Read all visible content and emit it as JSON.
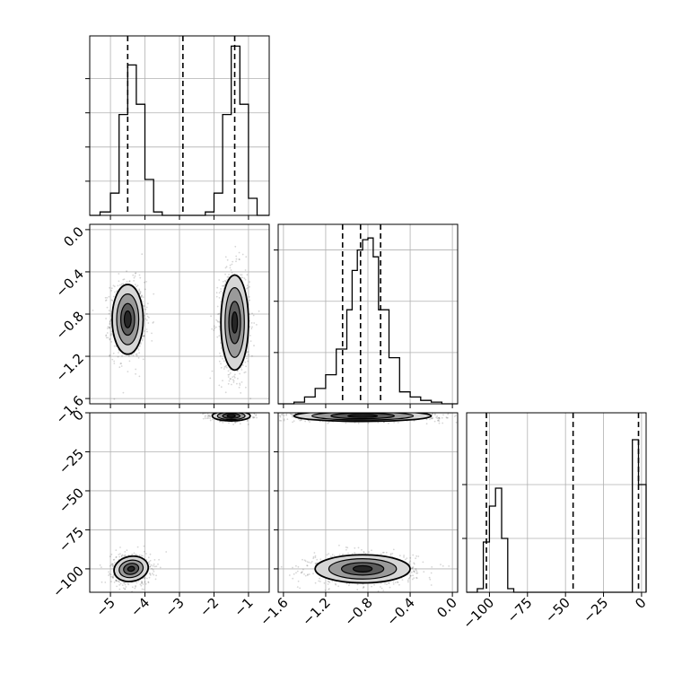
{
  "chart_data": {
    "type": "corner",
    "title": "",
    "grid": true,
    "style": {
      "frame_color": "#000000",
      "grid_color": "#b0b0b0",
      "hist_color": "#000000",
      "sample_color": "#000000",
      "contour_fill": [
        "#d6d6d6",
        "#9a9a9a",
        "#5c5c5c",
        "#262626"
      ]
    },
    "parameters": [
      {
        "name": "p0",
        "xlabel": "",
        "xlim": [
          -5.6,
          -0.4
        ],
        "ylim": [
          -1.65,
          0.05
        ],
        "ticks": [
          -5,
          -4,
          -3,
          -2,
          -1
        ],
        "tick_labels": [
          "−5",
          "−4",
          "−3",
          "−2",
          "−1"
        ],
        "ytick_labels": [
          "−1.6",
          "−1.2",
          "−0.8",
          "−0.4",
          "0.0"
        ],
        "yticks": [
          -1.6,
          -1.2,
          -0.8,
          -0.4,
          0.0
        ],
        "quantiles": [
          -4.5,
          -2.9,
          -1.4
        ],
        "hist_edges": [
          -5.6,
          -5.3,
          -5.0,
          -4.75,
          -4.5,
          -4.25,
          -4.0,
          -3.75,
          -3.5,
          -3.25,
          -3.0,
          -2.75,
          -2.5,
          -2.25,
          -2.0,
          -1.75,
          -1.5,
          -1.25,
          -1.0,
          -0.75,
          -0.5,
          -0.4
        ],
        "hist_counts": [
          0.0,
          0.02,
          0.13,
          0.59,
          0.88,
          0.65,
          0.21,
          0.02,
          0.0,
          0.0,
          0.0,
          0.0,
          0.0,
          0.02,
          0.13,
          0.59,
          0.99,
          0.65,
          0.1,
          0.0,
          0.0
        ],
        "hist_ylim": [
          0,
          1.05
        ],
        "hist_yticks": [
          0.2,
          0.4,
          0.6,
          0.8
        ]
      },
      {
        "name": "p1",
        "xlabel": "",
        "xlim": [
          -1.65,
          0.05
        ],
        "ylim": [
          -115,
          0
        ],
        "ticks": [
          -1.6,
          -1.2,
          -0.8,
          -0.4,
          0.0
        ],
        "tick_labels": [
          "−1.6",
          "−1.2",
          "−0.8",
          "−0.4",
          "0.0"
        ],
        "ytick_labels": [
          "−100",
          "−75",
          "−50",
          "−25",
          "0"
        ],
        "yticks": [
          -100,
          -75,
          -50,
          -25,
          0
        ],
        "quantiles": [
          -1.04,
          -0.87,
          -0.68
        ],
        "hist_edges": [
          -1.65,
          -1.5,
          -1.4,
          -1.3,
          -1.2,
          -1.1,
          -1.0,
          -0.95,
          -0.9,
          -0.85,
          -0.8,
          -0.75,
          -0.7,
          -0.6,
          -0.5,
          -0.4,
          -0.3,
          -0.2,
          -0.1,
          0.0,
          0.05
        ],
        "hist_counts": [
          0.0,
          0.01,
          0.04,
          0.09,
          0.17,
          0.32,
          0.55,
          0.78,
          0.9,
          0.96,
          0.97,
          0.86,
          0.55,
          0.27,
          0.07,
          0.04,
          0.02,
          0.01,
          0.0,
          0.0
        ],
        "hist_ylim": [
          0,
          1.05
        ],
        "hist_yticks": [
          0.3,
          0.6,
          0.9
        ]
      },
      {
        "name": "p2",
        "xlabel": "",
        "xlim": [
          -115,
          3
        ],
        "ticks": [
          -100,
          -75,
          -50,
          -25,
          0
        ],
        "tick_labels": [
          "−100",
          "−75",
          "−50",
          "−25",
          "0"
        ],
        "quantiles": [
          -102,
          -45,
          -2
        ],
        "hist_edges": [
          -115,
          -108,
          -104,
          -100,
          -96,
          -92,
          -88,
          -84,
          -80,
          -70,
          -60,
          -50,
          -40,
          -30,
          -20,
          -15,
          -10,
          -6,
          -2,
          3
        ],
        "hist_counts": [
          0.0,
          0.02,
          0.28,
          0.48,
          0.58,
          0.3,
          0.02,
          0.0,
          0.0,
          0.0,
          0.0,
          0.0,
          0.0,
          0.0,
          0.0,
          0.0,
          0.0,
          0.85,
          0.6
        ],
        "hist_ylim": [
          0,
          1.0
        ],
        "hist_yticks": [
          0.3,
          0.6
        ]
      }
    ],
    "pairs": [
      {
        "row": 1,
        "col": 0,
        "modes": [
          {
            "cx": -4.5,
            "cy": -0.85,
            "rx": [
              0.45,
              0.32,
              0.2,
              0.1
            ],
            "ry": [
              0.33,
              0.24,
              0.15,
              0.08
            ],
            "sx": 0.25,
            "sy": 0.18,
            "n": 900
          },
          {
            "cx": -1.4,
            "cy": -0.88,
            "rx": [
              0.4,
              0.28,
              0.17,
              0.08
            ],
            "ry": [
              0.45,
              0.33,
              0.2,
              0.1
            ],
            "sx": 0.22,
            "sy": 0.25,
            "n": 900
          }
        ]
      },
      {
        "row": 2,
        "col": 0,
        "modes": [
          {
            "cx": -4.4,
            "cy": -100,
            "rx": [
              0.5,
              0.35,
              0.22,
              0.1
            ],
            "ry": [
              8,
              5.5,
              3.5,
              1.5
            ],
            "sx": 0.28,
            "sy": 5,
            "n": 700,
            "tilt": 11
          },
          {
            "cx": -1.5,
            "cy": -2,
            "rx": [
              0.55,
              0.4,
              0.25,
              0.12
            ],
            "ry": [
              3.2,
              2.4,
              1.6,
              0.8
            ],
            "sx": 0.3,
            "sy": 1.6,
            "n": 700
          }
        ]
      },
      {
        "row": 2,
        "col": 1,
        "modes": [
          {
            "cx": -0.85,
            "cy": -100,
            "rx": [
              0.45,
              0.32,
              0.2,
              0.09
            ],
            "ry": [
              9,
              6.5,
              4,
              2
            ],
            "sx": 0.25,
            "sy": 5,
            "n": 900
          },
          {
            "cx": -0.85,
            "cy": -2,
            "rx": [
              0.65,
              0.48,
              0.3,
              0.14
            ],
            "ry": [
              3.5,
              2.6,
              1.8,
              0.9
            ],
            "sx": 0.38,
            "sy": 1.7,
            "n": 900
          }
        ]
      }
    ]
  }
}
